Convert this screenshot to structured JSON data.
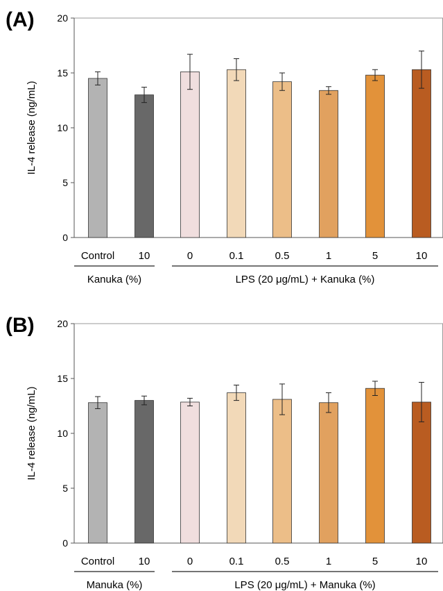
{
  "colors": {
    "control": "#b3b3b3",
    "treated": "#686868",
    "c0": "#f0dede",
    "c01": "#f2d9b8",
    "c05": "#ecbe88",
    "c1": "#e1a15f",
    "c5": "#e2923a",
    "c10": "#b95c21",
    "edge": "#333333",
    "axis": "#9a9a9a"
  },
  "chart_data": [
    {
      "type": "bar",
      "panel_label": "(A)",
      "ylabel": "IL-4 release (ng/mL)",
      "ylim": [
        0,
        20
      ],
      "yticks": [
        "0",
        "5",
        "10",
        "15",
        "20"
      ],
      "categories": [
        "Control",
        "10",
        "0",
        "0.1",
        "0.5",
        "1",
        "5",
        "10"
      ],
      "values": [
        14.5,
        13.0,
        15.1,
        15.3,
        14.2,
        13.4,
        14.8,
        15.3
      ],
      "errors": [
        0.6,
        0.7,
        1.6,
        1.0,
        0.8,
        0.35,
        0.5,
        1.7
      ],
      "groups": [
        {
          "label": "Kanuka (%)",
          "from": 0,
          "to": 1
        },
        {
          "label": "LPS (20 μg/mL) + Kanuka (%)",
          "from": 2,
          "to": 7
        }
      ]
    },
    {
      "type": "bar",
      "panel_label": "(B)",
      "ylabel": "IL-4 release (ng/mL)",
      "ylim": [
        0,
        20
      ],
      "yticks": [
        "0",
        "5",
        "10",
        "15",
        "20"
      ],
      "categories": [
        "Control",
        "10",
        "0",
        "0.1",
        "0.5",
        "1",
        "5",
        "10"
      ],
      "values": [
        12.8,
        13.0,
        12.85,
        13.7,
        13.1,
        12.8,
        14.1,
        12.85
      ],
      "errors": [
        0.55,
        0.4,
        0.35,
        0.7,
        1.4,
        0.9,
        0.65,
        1.8
      ],
      "groups": [
        {
          "label": "Manuka (%)",
          "from": 0,
          "to": 1
        },
        {
          "label": "LPS (20 μg/mL) + Manuka (%)",
          "from": 2,
          "to": 7
        }
      ]
    }
  ]
}
